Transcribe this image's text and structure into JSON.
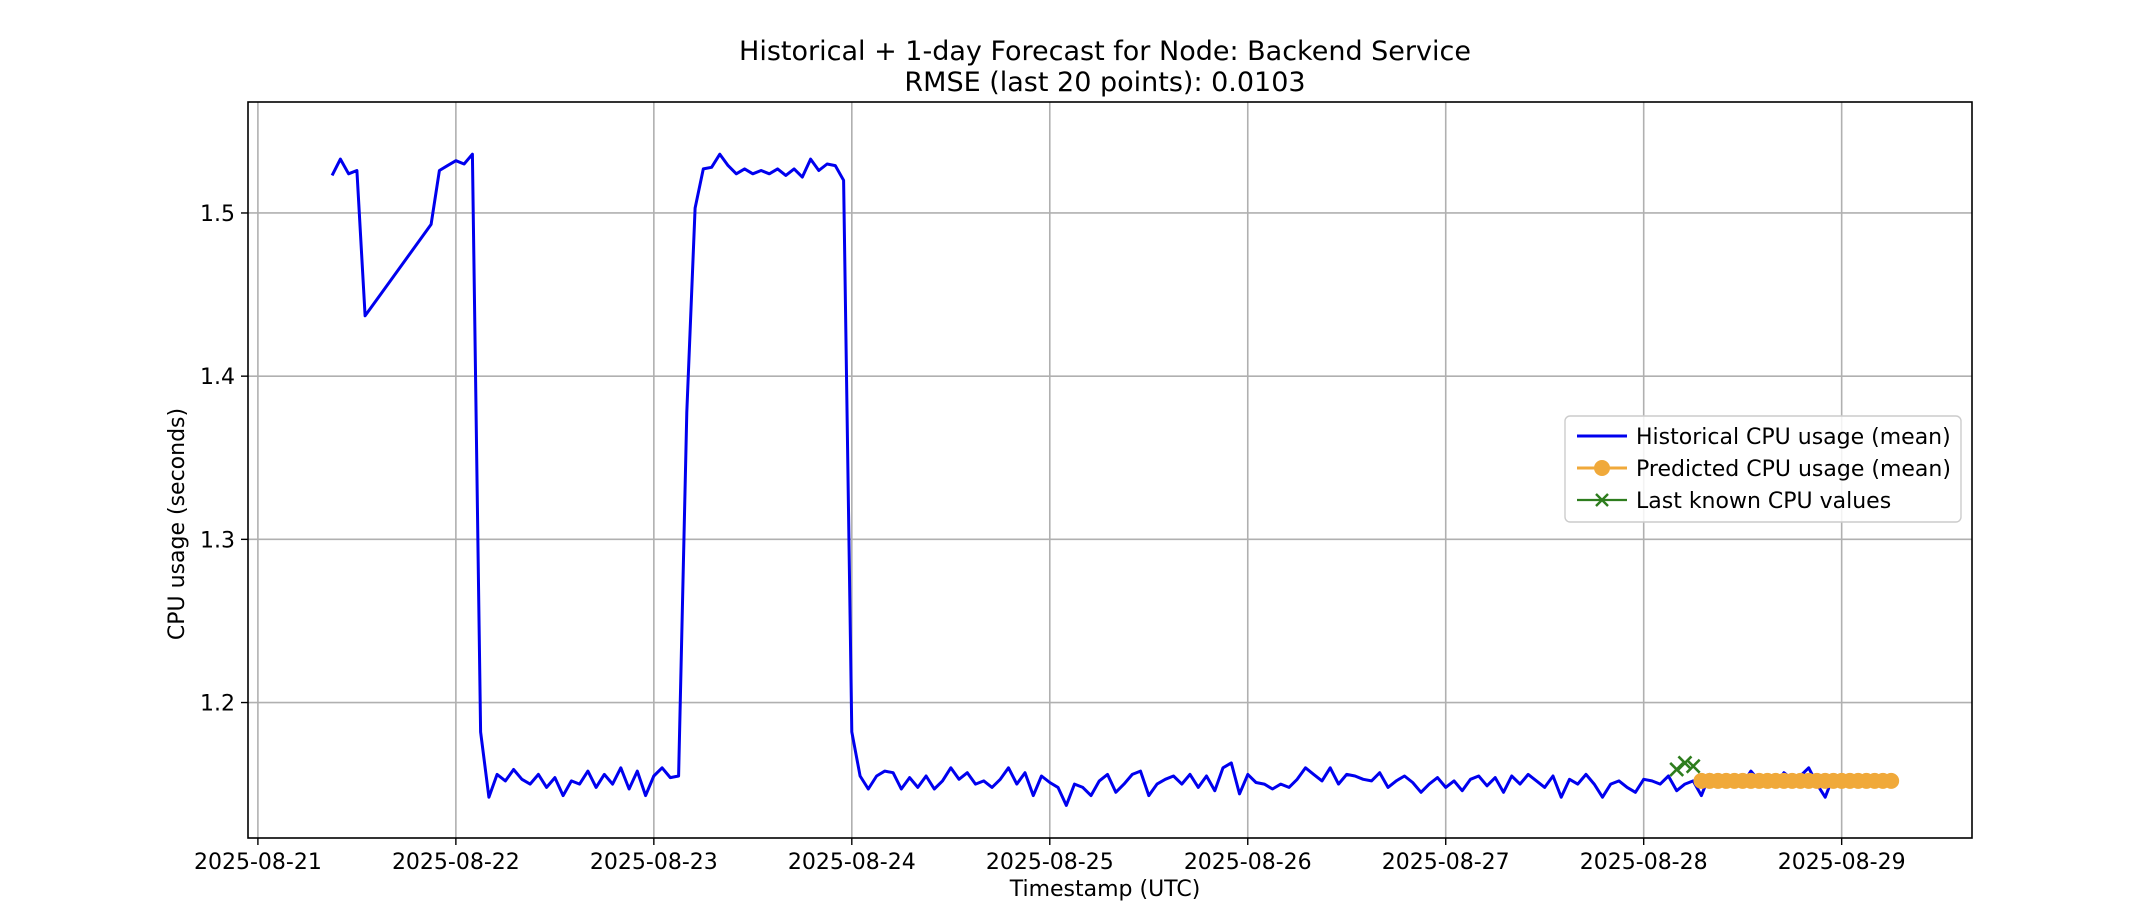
{
  "chart_data": {
    "type": "line",
    "title": "Historical + 1-day Forecast for Node: Backend Service",
    "subtitle": "RMSE (last 20 points): 0.0103",
    "xlabel": "Timestamp (UTC)",
    "ylabel": "CPU usage (seconds)",
    "x_ticks": [
      "2025-08-21",
      "2025-08-22",
      "2025-08-23",
      "2025-08-24",
      "2025-08-25",
      "2025-08-26",
      "2025-08-27",
      "2025-08-28",
      "2025-08-29"
    ],
    "y_ticks": [
      "1.2",
      "1.3",
      "1.4",
      "1.5"
    ],
    "xlim": [
      "2025-08-20T22:48",
      "2025-08-29T15:48"
    ],
    "ylim": [
      1.117,
      1.568
    ],
    "grid": true,
    "legend_position": "center-right",
    "colors": {
      "historical": "#0000ee",
      "predicted": "#f0a93a",
      "last_known": "#2e7d1e"
    },
    "series": [
      {
        "name": "Historical CPU usage (mean)",
        "style": "line",
        "points": [
          [
            "2025-08-21T09:00",
            1.523
          ],
          [
            "2025-08-21T10:00",
            1.533
          ],
          [
            "2025-08-21T11:00",
            1.524
          ],
          [
            "2025-08-21T12:00",
            1.526
          ],
          [
            "2025-08-21T13:00",
            1.437
          ],
          [
            "2025-08-21T21:00",
            1.493
          ],
          [
            "2025-08-21T22:00",
            1.526
          ],
          [
            "2025-08-21T23:00",
            1.529
          ],
          [
            "2025-08-22T00:00",
            1.532
          ],
          [
            "2025-08-22T01:00",
            1.53
          ],
          [
            "2025-08-22T02:00",
            1.536
          ],
          [
            "2025-08-22T03:00",
            1.182
          ],
          [
            "2025-08-22T04:00",
            1.142
          ],
          [
            "2025-08-22T05:00",
            1.156
          ],
          [
            "2025-08-22T06:00",
            1.152
          ],
          [
            "2025-08-22T07:00",
            1.159
          ],
          [
            "2025-08-22T08:00",
            1.153
          ],
          [
            "2025-08-22T09:00",
            1.15
          ],
          [
            "2025-08-22T10:00",
            1.156
          ],
          [
            "2025-08-22T11:00",
            1.148
          ],
          [
            "2025-08-22T12:00",
            1.154
          ],
          [
            "2025-08-22T13:00",
            1.143
          ],
          [
            "2025-08-22T14:00",
            1.152
          ],
          [
            "2025-08-22T15:00",
            1.15
          ],
          [
            "2025-08-22T16:00",
            1.158
          ],
          [
            "2025-08-22T17:00",
            1.148
          ],
          [
            "2025-08-22T18:00",
            1.156
          ],
          [
            "2025-08-22T19:00",
            1.15
          ],
          [
            "2025-08-22T20:00",
            1.16
          ],
          [
            "2025-08-22T21:00",
            1.147
          ],
          [
            "2025-08-22T22:00",
            1.158
          ],
          [
            "2025-08-22T23:00",
            1.143
          ],
          [
            "2025-08-23T00:00",
            1.155
          ],
          [
            "2025-08-23T01:00",
            1.16
          ],
          [
            "2025-08-23T02:00",
            1.154
          ],
          [
            "2025-08-23T03:00",
            1.155
          ],
          [
            "2025-08-23T04:00",
            1.378
          ],
          [
            "2025-08-23T05:00",
            1.503
          ],
          [
            "2025-08-23T06:00",
            1.527
          ],
          [
            "2025-08-23T07:00",
            1.528
          ],
          [
            "2025-08-23T08:00",
            1.536
          ],
          [
            "2025-08-23T09:00",
            1.529
          ],
          [
            "2025-08-23T10:00",
            1.524
          ],
          [
            "2025-08-23T11:00",
            1.527
          ],
          [
            "2025-08-23T12:00",
            1.524
          ],
          [
            "2025-08-23T13:00",
            1.526
          ],
          [
            "2025-08-23T14:00",
            1.524
          ],
          [
            "2025-08-23T15:00",
            1.527
          ],
          [
            "2025-08-23T16:00",
            1.523
          ],
          [
            "2025-08-23T17:00",
            1.527
          ],
          [
            "2025-08-23T18:00",
            1.522
          ],
          [
            "2025-08-23T19:00",
            1.533
          ],
          [
            "2025-08-23T20:00",
            1.526
          ],
          [
            "2025-08-23T21:00",
            1.53
          ],
          [
            "2025-08-23T22:00",
            1.529
          ],
          [
            "2025-08-23T23:00",
            1.52
          ],
          [
            "2025-08-24T00:00",
            1.182
          ],
          [
            "2025-08-24T01:00",
            1.155
          ],
          [
            "2025-08-24T02:00",
            1.147
          ],
          [
            "2025-08-24T03:00",
            1.155
          ],
          [
            "2025-08-24T04:00",
            1.158
          ],
          [
            "2025-08-24T05:00",
            1.157
          ],
          [
            "2025-08-24T06:00",
            1.147
          ],
          [
            "2025-08-24T07:00",
            1.154
          ],
          [
            "2025-08-24T08:00",
            1.148
          ],
          [
            "2025-08-24T09:00",
            1.155
          ],
          [
            "2025-08-24T10:00",
            1.147
          ],
          [
            "2025-08-24T11:00",
            1.152
          ],
          [
            "2025-08-24T12:00",
            1.16
          ],
          [
            "2025-08-24T13:00",
            1.153
          ],
          [
            "2025-08-24T14:00",
            1.157
          ],
          [
            "2025-08-24T15:00",
            1.15
          ],
          [
            "2025-08-24T16:00",
            1.152
          ],
          [
            "2025-08-24T17:00",
            1.148
          ],
          [
            "2025-08-24T18:00",
            1.153
          ],
          [
            "2025-08-24T19:00",
            1.16
          ],
          [
            "2025-08-24T20:00",
            1.15
          ],
          [
            "2025-08-24T21:00",
            1.157
          ],
          [
            "2025-08-24T22:00",
            1.143
          ],
          [
            "2025-08-24T23:00",
            1.155
          ],
          [
            "2025-08-25T00:00",
            1.151
          ],
          [
            "2025-08-25T01:00",
            1.148
          ],
          [
            "2025-08-25T02:00",
            1.137
          ],
          [
            "2025-08-25T03:00",
            1.15
          ],
          [
            "2025-08-25T04:00",
            1.148
          ],
          [
            "2025-08-25T05:00",
            1.143
          ],
          [
            "2025-08-25T06:00",
            1.152
          ],
          [
            "2025-08-25T07:00",
            1.156
          ],
          [
            "2025-08-25T08:00",
            1.145
          ],
          [
            "2025-08-25T09:00",
            1.15
          ],
          [
            "2025-08-25T10:00",
            1.156
          ],
          [
            "2025-08-25T11:00",
            1.158
          ],
          [
            "2025-08-25T12:00",
            1.143
          ],
          [
            "2025-08-25T13:00",
            1.15
          ],
          [
            "2025-08-25T14:00",
            1.153
          ],
          [
            "2025-08-25T15:00",
            1.155
          ],
          [
            "2025-08-25T16:00",
            1.15
          ],
          [
            "2025-08-25T17:00",
            1.156
          ],
          [
            "2025-08-25T18:00",
            1.148
          ],
          [
            "2025-08-25T19:00",
            1.155
          ],
          [
            "2025-08-25T20:00",
            1.146
          ],
          [
            "2025-08-25T21:00",
            1.16
          ],
          [
            "2025-08-25T22:00",
            1.163
          ],
          [
            "2025-08-25T23:00",
            1.144
          ],
          [
            "2025-08-26T00:00",
            1.156
          ],
          [
            "2025-08-26T01:00",
            1.151
          ],
          [
            "2025-08-26T02:00",
            1.15
          ],
          [
            "2025-08-26T03:00",
            1.147
          ],
          [
            "2025-08-26T04:00",
            1.15
          ],
          [
            "2025-08-26T05:00",
            1.148
          ],
          [
            "2025-08-26T06:00",
            1.153
          ],
          [
            "2025-08-26T07:00",
            1.16
          ],
          [
            "2025-08-26T08:00",
            1.156
          ],
          [
            "2025-08-26T09:00",
            1.152
          ],
          [
            "2025-08-26T10:00",
            1.16
          ],
          [
            "2025-08-26T11:00",
            1.15
          ],
          [
            "2025-08-26T12:00",
            1.156
          ],
          [
            "2025-08-26T13:00",
            1.155
          ],
          [
            "2025-08-26T14:00",
            1.153
          ],
          [
            "2025-08-26T15:00",
            1.152
          ],
          [
            "2025-08-26T16:00",
            1.157
          ],
          [
            "2025-08-26T17:00",
            1.148
          ],
          [
            "2025-08-26T18:00",
            1.152
          ],
          [
            "2025-08-26T19:00",
            1.155
          ],
          [
            "2025-08-26T20:00",
            1.151
          ],
          [
            "2025-08-26T21:00",
            1.145
          ],
          [
            "2025-08-26T22:00",
            1.15
          ],
          [
            "2025-08-26T23:00",
            1.154
          ],
          [
            "2025-08-27T00:00",
            1.148
          ],
          [
            "2025-08-27T01:00",
            1.152
          ],
          [
            "2025-08-27T02:00",
            1.146
          ],
          [
            "2025-08-27T03:00",
            1.153
          ],
          [
            "2025-08-27T04:00",
            1.155
          ],
          [
            "2025-08-27T05:00",
            1.149
          ],
          [
            "2025-08-27T06:00",
            1.154
          ],
          [
            "2025-08-27T07:00",
            1.145
          ],
          [
            "2025-08-27T08:00",
            1.155
          ],
          [
            "2025-08-27T09:00",
            1.15
          ],
          [
            "2025-08-27T10:00",
            1.156
          ],
          [
            "2025-08-27T11:00",
            1.152
          ],
          [
            "2025-08-27T12:00",
            1.148
          ],
          [
            "2025-08-27T13:00",
            1.155
          ],
          [
            "2025-08-27T14:00",
            1.142
          ],
          [
            "2025-08-27T15:00",
            1.153
          ],
          [
            "2025-08-27T16:00",
            1.15
          ],
          [
            "2025-08-27T17:00",
            1.156
          ],
          [
            "2025-08-27T18:00",
            1.15
          ],
          [
            "2025-08-27T19:00",
            1.142
          ],
          [
            "2025-08-27T20:00",
            1.15
          ],
          [
            "2025-08-27T21:00",
            1.152
          ],
          [
            "2025-08-27T22:00",
            1.148
          ],
          [
            "2025-08-27T23:00",
            1.145
          ],
          [
            "2025-08-28T00:00",
            1.153
          ],
          [
            "2025-08-28T01:00",
            1.152
          ],
          [
            "2025-08-28T02:00",
            1.15
          ],
          [
            "2025-08-28T03:00",
            1.155
          ],
          [
            "2025-08-28T04:00",
            1.146
          ],
          [
            "2025-08-28T05:00",
            1.15
          ],
          [
            "2025-08-28T06:00",
            1.152
          ],
          [
            "2025-08-28T07:00",
            1.143
          ],
          [
            "2025-08-28T08:00",
            1.156
          ],
          [
            "2025-08-28T09:00",
            1.15
          ],
          [
            "2025-08-28T10:00",
            1.155
          ],
          [
            "2025-08-28T11:00",
            1.154
          ],
          [
            "2025-08-28T12:00",
            1.15
          ],
          [
            "2025-08-28T13:00",
            1.158
          ],
          [
            "2025-08-28T14:00",
            1.152
          ],
          [
            "2025-08-28T15:00",
            1.155
          ],
          [
            "2025-08-28T16:00",
            1.15
          ],
          [
            "2025-08-28T17:00",
            1.157
          ],
          [
            "2025-08-28T18:00",
            1.153
          ],
          [
            "2025-08-28T19:00",
            1.155
          ],
          [
            "2025-08-28T20:00",
            1.16
          ],
          [
            "2025-08-28T21:00",
            1.15
          ],
          [
            "2025-08-28T22:00",
            1.142
          ],
          [
            "2025-08-28T23:00",
            1.155
          ]
        ]
      },
      {
        "name": "Predicted CPU usage (mean)",
        "style": "markers-line",
        "start": "2025-08-28T07:00",
        "end": "2025-08-29T06:00",
        "step_minutes": 60,
        "value": 1.152
      },
      {
        "name": "Last known CPU values",
        "style": "x-markers",
        "points": [
          [
            "2025-08-28T04:00",
            1.159
          ],
          [
            "2025-08-28T05:00",
            1.163
          ],
          [
            "2025-08-28T06:00",
            1.161
          ]
        ]
      }
    ]
  }
}
